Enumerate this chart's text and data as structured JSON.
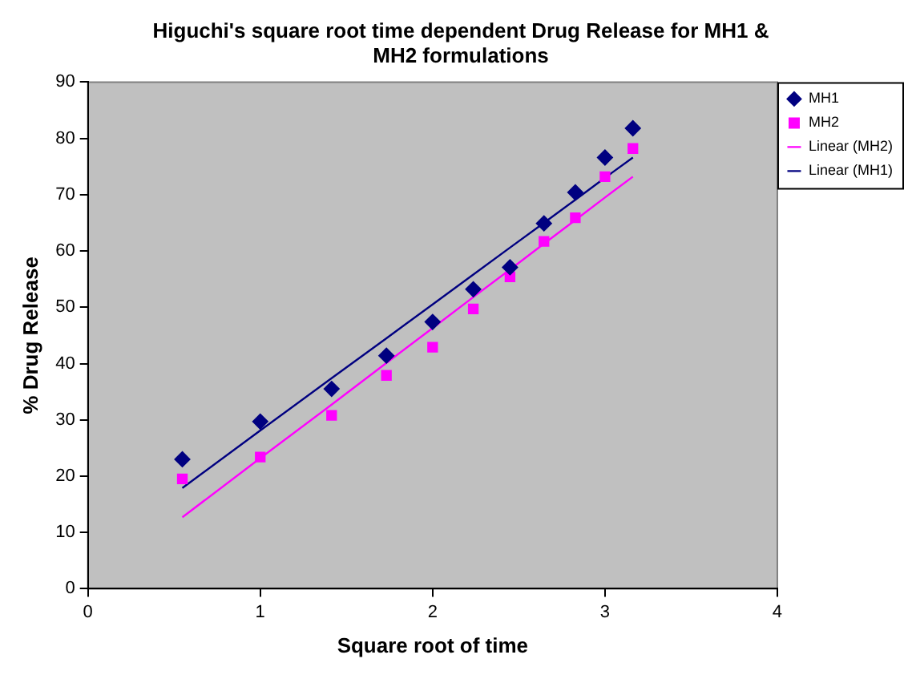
{
  "chart_data": {
    "type": "scatter",
    "title": "Higuchi's square root time dependent Drug Release for MH1 & MH2 formulations",
    "xlabel": "Square root of time",
    "ylabel": "% Drug Release",
    "x": [
      0.548,
      1,
      1.414,
      1.732,
      2,
      2.236,
      2.449,
      2.646,
      2.828,
      3,
      3.162
    ],
    "series": [
      {
        "name": "MH1",
        "color": "#000080",
        "marker": "diamond",
        "values": [
          23.0,
          29.7,
          35.5,
          41.4,
          47.4,
          53.2,
          57.1,
          64.9,
          70.4,
          76.6,
          81.8
        ]
      },
      {
        "name": "MH2",
        "color": "#ff00ff",
        "marker": "square",
        "values": [
          19.5,
          23.4,
          30.8,
          37.9,
          42.9,
          49.7,
          55.4,
          61.7,
          65.9,
          73.2,
          78.2
        ]
      },
      {
        "name": "Linear (MH2)",
        "type": "line",
        "color": "#ff00ff",
        "marker": "none",
        "values": [
          12.7,
          23.2,
          32.7,
          40.1,
          46.3,
          51.8,
          56.7,
          61.3,
          65.5,
          69.5,
          73.2
        ]
      },
      {
        "name": "Linear (MH1)",
        "type": "line",
        "color": "#000080",
        "marker": "none",
        "values": [
          17.9,
          28.1,
          37.4,
          44.5,
          50.5,
          55.8,
          60.6,
          65.0,
          69.1,
          73.0,
          76.6
        ]
      }
    ],
    "xlim": [
      0,
      4
    ],
    "xticks": [
      0,
      1,
      2,
      3,
      4
    ],
    "ylim": [
      0,
      90
    ],
    "yticks": [
      0,
      10,
      20,
      30,
      40,
      50,
      60,
      70,
      80,
      90
    ],
    "grid": false,
    "legend": "right"
  }
}
